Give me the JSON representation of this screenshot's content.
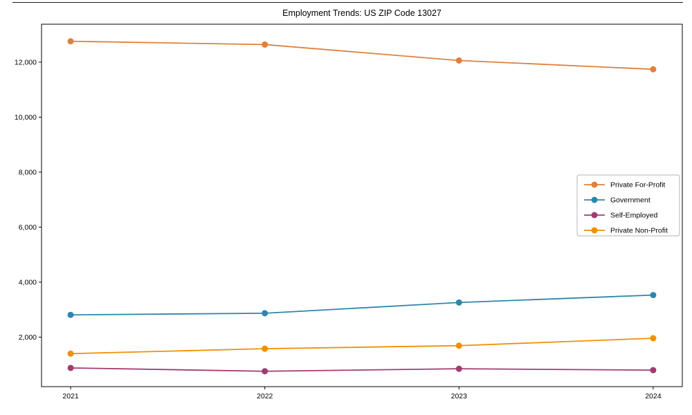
{
  "chart_data": {
    "type": "line",
    "title": "Employment Trends: US ZIP Code 13027",
    "x": [
      2021,
      2022,
      2023,
      2024
    ],
    "x_tick_labels": [
      "2021",
      "2022",
      "2023",
      "2024"
    ],
    "y_ticks": [
      2000,
      4000,
      6000,
      8000,
      10000,
      12000
    ],
    "y_tick_labels": [
      "2,000",
      "4,000",
      "6,000",
      "8,000",
      "10,000",
      "12,000"
    ],
    "xlim": [
      2020.85,
      2024.15
    ],
    "ylim": [
      200,
      13380
    ],
    "grid": false,
    "legend_position": "center right",
    "series": [
      {
        "name": "Private For-Profit",
        "color": "#E0803C",
        "values": [
          12760,
          12640,
          12060,
          11740
        ]
      },
      {
        "name": "Government",
        "color": "#2E86AB",
        "values": [
          2810,
          2870,
          3260,
          3530
        ]
      },
      {
        "name": "Self-Employed",
        "color": "#A23B72",
        "values": [
          880,
          760,
          850,
          800
        ]
      },
      {
        "name": "Private Non-Profit",
        "color": "#F18F01",
        "values": [
          1400,
          1580,
          1690,
          1960
        ]
      }
    ],
    "frame_color": "#000000",
    "legend_border_color": "#b3b3b3",
    "background_color": "#ffffff"
  }
}
